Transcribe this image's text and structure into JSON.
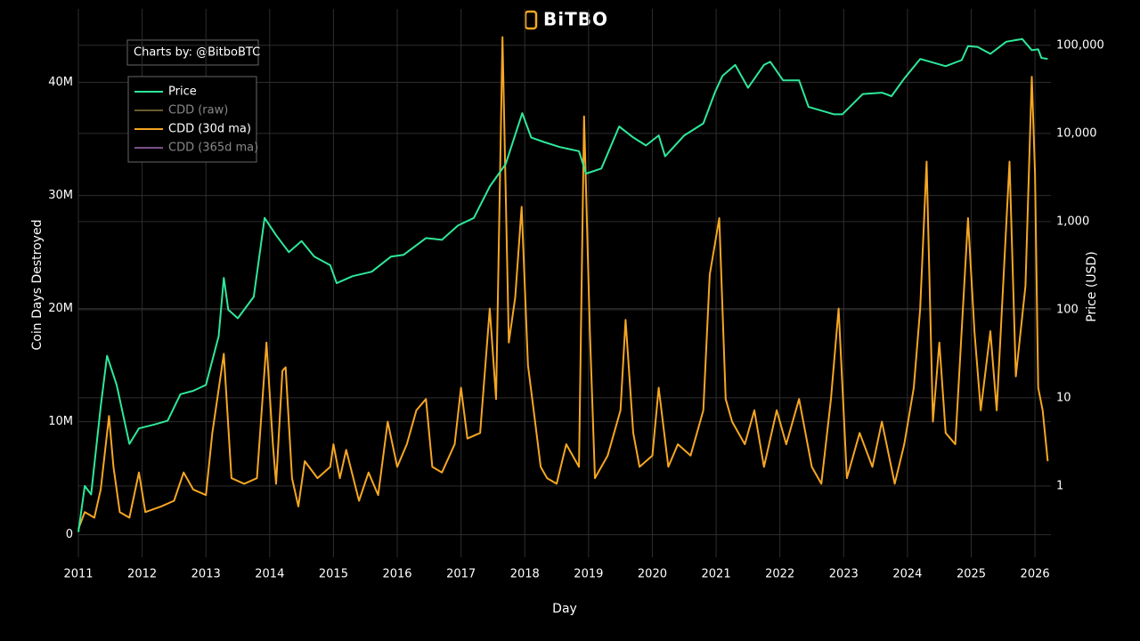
{
  "brand": "BiTBO",
  "chart_data": {
    "type": "line",
    "credit": "Charts by: @BitboBTC",
    "xlabel": "Day",
    "ylabel": "Coin Days Destroyed",
    "y2label": "Price (USD)",
    "xlim": [
      2011,
      2026.25
    ],
    "xticks": [
      2011,
      2012,
      2013,
      2014,
      2015,
      2016,
      2017,
      2018,
      2019,
      2020,
      2021,
      2022,
      2023,
      2024,
      2025,
      2026
    ],
    "ylim": [
      -2000000.0,
      46500000.0
    ],
    "yticks": [
      0,
      {
        "value": 10000000.0,
        "label": "10M"
      },
      {
        "value": 20000000.0,
        "label": "20M"
      },
      {
        "value": 30000000.0,
        "label": "30M"
      },
      {
        "value": 40000000.0,
        "label": "40M"
      }
    ],
    "y2lim": [
      0.155,
      259000
    ],
    "y2log": true,
    "y2ticks": [
      1,
      10,
      100,
      {
        "value": 1000,
        "label": "1,000"
      },
      {
        "value": 10000,
        "label": "10,000"
      },
      {
        "value": 100000,
        "label": "100,000"
      }
    ],
    "grid": true,
    "legend": "top-left",
    "series": [
      {
        "name": "Price",
        "color": "#2ee89a",
        "axis": "y2",
        "x": [
          2011.0,
          2011.1,
          2011.2,
          2011.35,
          2011.45,
          2011.6,
          2011.8,
          2011.95,
          2012.2,
          2012.4,
          2012.6,
          2012.8,
          2013.0,
          2013.2,
          2013.28,
          2013.35,
          2013.5,
          2013.75,
          2013.92,
          2014.1,
          2014.3,
          2014.5,
          2014.7,
          2014.95,
          2015.05,
          2015.3,
          2015.6,
          2015.9,
          2016.1,
          2016.45,
          2016.7,
          2016.95,
          2017.2,
          2017.45,
          2017.7,
          2017.96,
          2018.1,
          2018.3,
          2018.55,
          2018.85,
          2018.96,
          2019.2,
          2019.48,
          2019.7,
          2019.9,
          2020.1,
          2020.2,
          2020.5,
          2020.8,
          2020.98,
          2021.1,
          2021.3,
          2021.5,
          2021.75,
          2021.85,
          2022.05,
          2022.3,
          2022.45,
          2022.85,
          2022.98,
          2023.3,
          2023.6,
          2023.75,
          2023.95,
          2024.2,
          2024.6,
          2024.85,
          2024.95,
          2025.1,
          2025.3,
          2025.55,
          2025.8,
          2025.95,
          2026.05,
          2026.1,
          2026.2
        ],
        "values": [
          0.3,
          1,
          0.8,
          8,
          30,
          14,
          3,
          4.5,
          5,
          5.5,
          11,
          12,
          14,
          50,
          230,
          100,
          80,
          140,
          1100,
          700,
          450,
          600,
          400,
          320,
          200,
          240,
          270,
          400,
          420,
          650,
          620,
          900,
          1100,
          2500,
          4500,
          17000,
          9000,
          8000,
          7000,
          6300,
          3500,
          4000,
          12000,
          9000,
          7300,
          9500,
          5500,
          9500,
          13000,
          29000,
          45000,
          60000,
          33000,
          60000,
          65000,
          40000,
          40000,
          20000,
          16500,
          16500,
          28000,
          29000,
          26500,
          42000,
          70000,
          58000,
          68000,
          98000,
          96000,
          80000,
          110000,
          118000,
          88000,
          90000,
          72000,
          70000
        ]
      },
      {
        "name": "CDD (raw)",
        "color": "#6b5a2e",
        "visible": false
      },
      {
        "name": "CDD (30d ma)",
        "color": "#f5a623",
        "x": [
          2011.0,
          2011.1,
          2011.25,
          2011.35,
          2011.48,
          2011.55,
          2011.65,
          2011.8,
          2011.95,
          2012.05,
          2012.3,
          2012.5,
          2012.65,
          2012.8,
          2013.0,
          2013.1,
          2013.28,
          2013.4,
          2013.6,
          2013.8,
          2013.95,
          2014.05,
          2014.1,
          2014.2,
          2014.25,
          2014.35,
          2014.45,
          2014.55,
          2014.75,
          2014.95,
          2015.0,
          2015.1,
          2015.2,
          2015.4,
          2015.55,
          2015.7,
          2015.85,
          2016.0,
          2016.15,
          2016.3,
          2016.45,
          2016.55,
          2016.7,
          2016.9,
          2017.0,
          2017.1,
          2017.3,
          2017.45,
          2017.55,
          2017.65,
          2017.75,
          2017.85,
          2017.95,
          2018.05,
          2018.15,
          2018.25,
          2018.35,
          2018.5,
          2018.65,
          2018.85,
          2018.93,
          2019.02,
          2019.1,
          2019.3,
          2019.5,
          2019.58,
          2019.7,
          2019.8,
          2020.0,
          2020.1,
          2020.25,
          2020.4,
          2020.6,
          2020.8,
          2020.9,
          2021.05,
          2021.15,
          2021.25,
          2021.45,
          2021.6,
          2021.75,
          2021.95,
          2022.1,
          2022.3,
          2022.5,
          2022.65,
          2022.8,
          2022.92,
          2023.05,
          2023.25,
          2023.45,
          2023.6,
          2023.8,
          2023.95,
          2024.1,
          2024.2,
          2024.3,
          2024.4,
          2024.5,
          2024.6,
          2024.75,
          2024.95,
          2025.05,
          2025.15,
          2025.3,
          2025.4,
          2025.6,
          2025.7,
          2025.85,
          2025.95,
          2026.0,
          2026.05,
          2026.12,
          2026.2
        ],
        "values": [
          500000.0,
          2000000.0,
          1500000.0,
          4000000.0,
          10500000.0,
          6000000.0,
          2000000.0,
          1500000.0,
          5500000.0,
          2000000.0,
          2500000.0,
          3000000.0,
          5500000.0,
          4000000.0,
          3500000.0,
          9000000.0,
          16000000.0,
          5000000.0,
          4500000.0,
          5000000.0,
          17000000.0,
          8000000.0,
          4500000.0,
          14500000.0,
          14800000.0,
          5000000.0,
          2500000.0,
          6500000.0,
          5000000.0,
          6000000.0,
          8000000.0,
          5000000.0,
          7500000.0,
          3000000.0,
          5500000.0,
          3500000.0,
          10000000.0,
          6000000.0,
          8000000.0,
          11000000.0,
          12000000.0,
          6000000.0,
          5500000.0,
          8000000.0,
          13000000.0,
          8500000.0,
          9000000.0,
          20000000.0,
          12000000.0,
          44000000.0,
          17000000.0,
          21000000.0,
          29000000.0,
          15000000.0,
          10500000.0,
          6000000.0,
          5000000.0,
          4500000.0,
          8000000.0,
          6000000.0,
          37000000.0,
          18000000.0,
          5000000.0,
          7000000.0,
          11000000.0,
          19000000.0,
          9000000.0,
          6000000.0,
          7000000.0,
          13000000.0,
          6000000.0,
          8000000.0,
          7000000.0,
          11000000.0,
          23000000.0,
          28000000.0,
          12000000.0,
          10000000.0,
          8000000.0,
          11000000.0,
          6000000.0,
          11000000.0,
          8000000.0,
          12000000.0,
          6000000.0,
          4500000.0,
          12000000.0,
          20000000.0,
          5000000.0,
          9000000.0,
          6000000.0,
          10000000.0,
          4500000.0,
          8000000.0,
          13000000.0,
          20000000.0,
          33000000.0,
          10000000.0,
          17000000.0,
          9000000.0,
          8000000.0,
          28000000.0,
          18000000.0,
          11000000.0,
          18000000.0,
          11000000.0,
          33000000.0,
          14000000.0,
          22000000.0,
          40500000.0,
          32000000.0,
          13000000.0,
          11000000.0,
          6500000.0
        ]
      },
      {
        "name": "CDD (365d ma)",
        "color": "#7a4f8a",
        "visible": false
      }
    ]
  }
}
